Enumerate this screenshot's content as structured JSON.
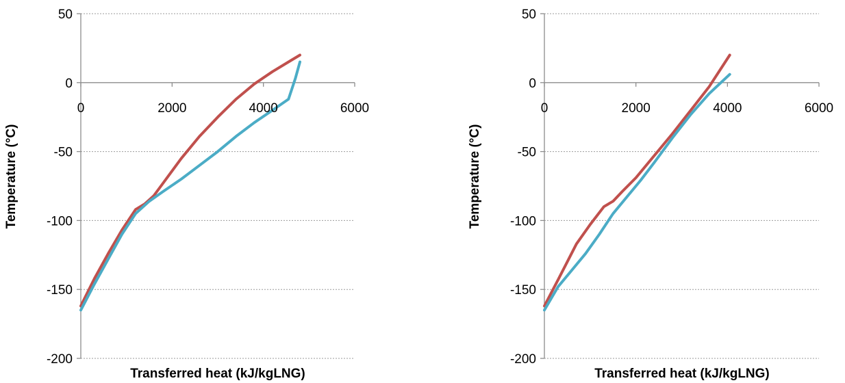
{
  "chart_data": [
    {
      "type": "line",
      "xlabel": "Transferred heat (kJ/kgLNG)",
      "ylabel": "Temperature (°C)",
      "xlim": [
        0,
        6000
      ],
      "ylim": [
        -200,
        50
      ],
      "xticks": [
        0,
        2000,
        4000,
        6000
      ],
      "yticks": [
        50,
        0,
        -50,
        -100,
        -150,
        -200
      ],
      "grid": "horizontal",
      "legend": "none",
      "series": [
        {
          "color": "#c0504d",
          "x": [
            0,
            300,
            600,
            900,
            1200,
            1400,
            1600,
            1800,
            2200,
            2600,
            3000,
            3400,
            3800,
            4200,
            4600,
            4800
          ],
          "y": [
            -162,
            -142,
            -124,
            -107,
            -92,
            -88,
            -82,
            -73,
            -55,
            -39,
            -25,
            -12,
            -1,
            8,
            16,
            20
          ]
        },
        {
          "color": "#4bacc6",
          "x": [
            0,
            300,
            600,
            900,
            1200,
            1500,
            1800,
            2200,
            2600,
            3000,
            3400,
            3800,
            4200,
            4550,
            4700,
            4800
          ],
          "y": [
            -165,
            -146,
            -128,
            -110,
            -95,
            -86,
            -79,
            -70,
            -60,
            -50,
            -39,
            -29,
            -20,
            -12,
            3,
            15
          ]
        }
      ]
    },
    {
      "type": "line",
      "xlabel": "Transferred heat (kJ/kgLNG)",
      "ylabel": "Temperature (°C)",
      "xlim": [
        0,
        6000
      ],
      "ylim": [
        -200,
        50
      ],
      "xticks": [
        0,
        2000,
        4000,
        6000
      ],
      "yticks": [
        50,
        0,
        -50,
        -100,
        -150,
        -200
      ],
      "grid": "horizontal",
      "legend": "none",
      "series": [
        {
          "color": "#c0504d",
          "x": [
            0,
            300,
            700,
            1000,
            1300,
            1500,
            1700,
            2000,
            2400,
            2800,
            3200,
            3600,
            4050
          ],
          "y": [
            -162,
            -143,
            -117,
            -103,
            -90,
            -86,
            -79,
            -69,
            -53,
            -37,
            -20,
            -3,
            20
          ]
        },
        {
          "color": "#4bacc6",
          "x": [
            0,
            300,
            600,
            900,
            1200,
            1500,
            1800,
            2100,
            2400,
            2800,
            3200,
            3600,
            4050
          ],
          "y": [
            -165,
            -148,
            -136,
            -124,
            -110,
            -95,
            -83,
            -71,
            -58,
            -40,
            -23,
            -8,
            6
          ]
        }
      ]
    }
  ]
}
